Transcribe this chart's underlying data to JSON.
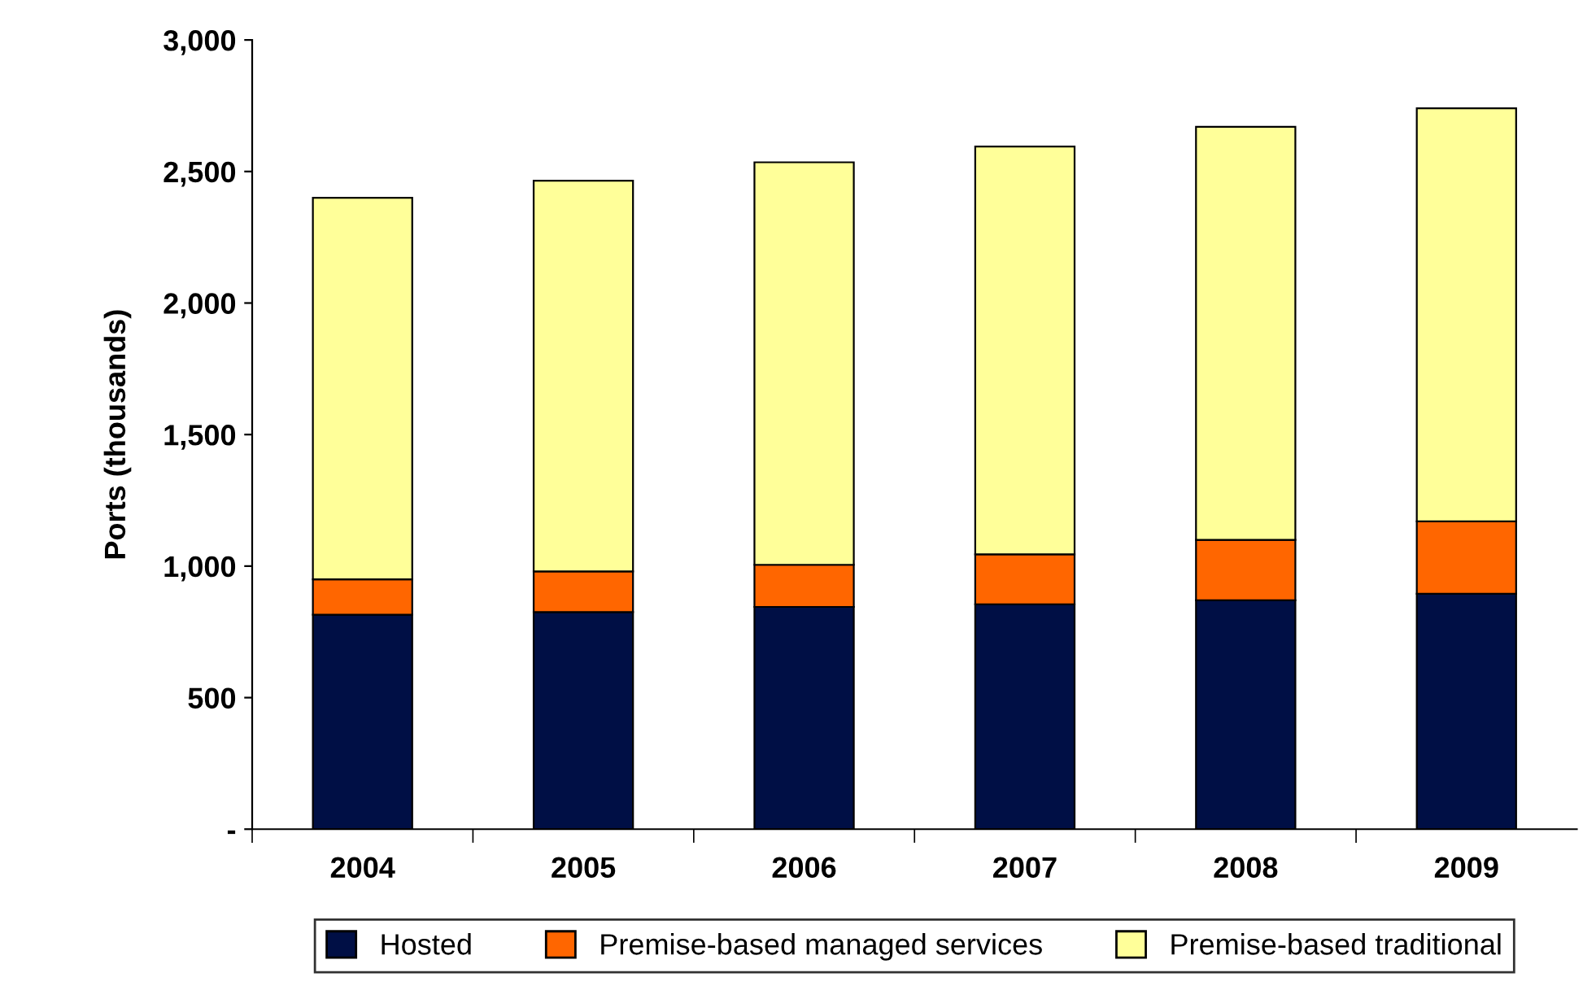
{
  "chart_data": {
    "type": "bar",
    "stacked": true,
    "ylabel": "Ports (thousands)",
    "categories": [
      "2004",
      "2005",
      "2006",
      "2007",
      "2008",
      "2009"
    ],
    "series": [
      {
        "name": "Hosted",
        "color": "#000f45",
        "values": [
          815,
          825,
          845,
          855,
          870,
          895
        ]
      },
      {
        "name": "Premise-based managed services",
        "color": "#ff6600",
        "values": [
          135,
          155,
          160,
          190,
          230,
          275
        ]
      },
      {
        "name": "Premise-based traditional",
        "color": "#ffff99",
        "values": [
          1450,
          1485,
          1530,
          1550,
          1570,
          1570
        ]
      }
    ],
    "ylim": [
      0,
      3000
    ],
    "yticks": [
      {
        "value": 0,
        "label": "-"
      },
      {
        "value": 500,
        "label": "500"
      },
      {
        "value": 1000,
        "label": "1,000"
      },
      {
        "value": 1500,
        "label": "1,500"
      },
      {
        "value": 2000,
        "label": "2,000"
      },
      {
        "value": 2500,
        "label": "2,500"
      },
      {
        "value": 3000,
        "label": "3,000"
      }
    ],
    "grid": false,
    "legend": "bottom"
  }
}
